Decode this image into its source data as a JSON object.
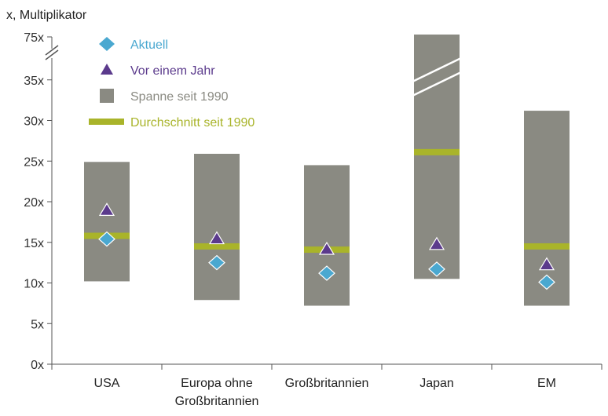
{
  "chart_data": {
    "type": "bar",
    "unit_label": "x, Multiplikator",
    "categories": [
      {
        "line1": "USA",
        "line2": ""
      },
      {
        "line1": "Europa ohne",
        "line2": "Großbritannien"
      },
      {
        "line1": "Großbritannien",
        "line2": ""
      },
      {
        "line1": "Japan",
        "line2": ""
      },
      {
        "line1": "EM",
        "line2": ""
      }
    ],
    "y_ticks": [
      "0x",
      "5x",
      "10x",
      "15x",
      "20x",
      "25x",
      "30x",
      "35x"
    ],
    "y_break_tick": "75x",
    "ylim": [
      0,
      37
    ],
    "y_axis_break": true,
    "legend_position": "top-left",
    "series": [
      {
        "name": "Spanne seit 1990",
        "type": "range",
        "low": [
          10.2,
          7.9,
          7.2,
          10.5,
          7.2
        ],
        "high": [
          24.9,
          25.9,
          24.5,
          75,
          31.2
        ],
        "truncated": [
          false,
          false,
          false,
          true,
          false
        ]
      },
      {
        "name": "Durchschnitt seit 1990",
        "type": "marker-bar",
        "values": [
          15.8,
          14.5,
          14.1,
          26.1,
          14.5
        ]
      },
      {
        "name": "Aktuell",
        "type": "diamond",
        "values": [
          15.4,
          12.5,
          11.2,
          11.7,
          10.1
        ]
      },
      {
        "name": "Vor einem Jahr",
        "type": "triangle",
        "values": [
          19.0,
          15.5,
          14.2,
          14.8,
          12.3
        ]
      }
    ],
    "colors": {
      "range": "#8a8a82",
      "average": "#a9b42a",
      "current": "#4aa8d0",
      "year_ago": "#5b3a8c",
      "axis": "#555555"
    }
  }
}
